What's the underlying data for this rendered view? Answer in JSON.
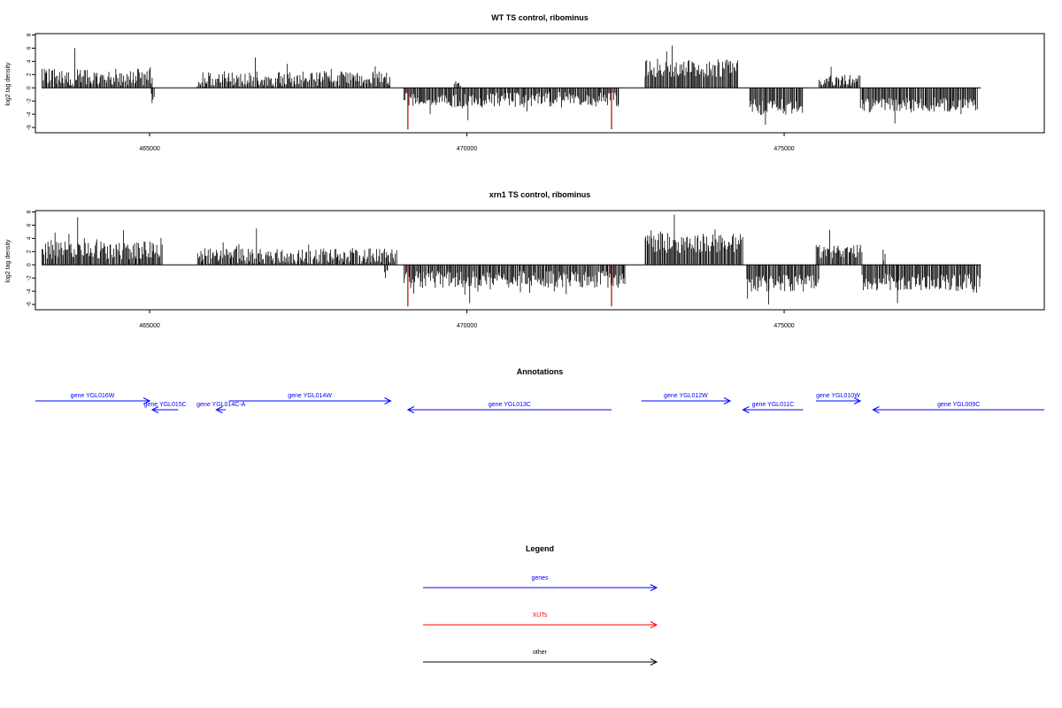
{
  "chart_data": [
    {
      "type": "bar",
      "title": "WT TS control, ribominus",
      "ylabel": "log2 tag density",
      "xlim": [
        463200,
        479100
      ],
      "ylim": [
        -6.8,
        8.2
      ],
      "yticks": [
        8,
        6,
        4,
        2,
        0,
        -2,
        -4,
        -6
      ],
      "xticks": [
        465000,
        470000,
        475000
      ],
      "xtick_labels": [
        "465000",
        "470000",
        "475000"
      ],
      "zero_baseline": 0,
      "plus_strand_regions": [
        {
          "from": 463300,
          "to": 465050,
          "mean": 1.6,
          "spread": 1.3,
          "max": 6.0
        },
        {
          "from": 465750,
          "to": 468800,
          "mean": 1.3,
          "spread": 1.2,
          "max": 4.6
        },
        {
          "from": 469800,
          "to": 469900,
          "mean": 0.6,
          "spread": 0.3,
          "max": 1.0
        },
        {
          "from": 472800,
          "to": 474280,
          "mean": 3.0,
          "spread": 1.4,
          "max": 6.4
        },
        {
          "from": 475550,
          "to": 476200,
          "mean": 1.1,
          "spread": 0.8,
          "max": 3.2
        }
      ],
      "minus_strand_regions": [
        {
          "from": 465020,
          "to": 465080,
          "mean": -1.5,
          "spread": 0.8,
          "max": -2.3
        },
        {
          "from": 469000,
          "to": 472400,
          "mean": -1.8,
          "spread": 1.2,
          "max": -4.9
        },
        {
          "from": 474450,
          "to": 475300,
          "mean": -2.9,
          "spread": 1.2,
          "max": -5.6
        },
        {
          "from": 476200,
          "to": 478050,
          "mean": -2.6,
          "spread": 1.2,
          "max": -5.4
        }
      ],
      "highlight_bars": [
        {
          "x": 469070,
          "value": -6.3,
          "color": "#c00000"
        },
        {
          "x": 472280,
          "value": -6.3,
          "color": "#c00000"
        }
      ]
    },
    {
      "type": "bar",
      "title": "xrn1 TS control, ribominus",
      "ylabel": "log2 tag density",
      "xlim": [
        463200,
        479100
      ],
      "ylim": [
        -6.8,
        8.2
      ],
      "yticks": [
        8,
        6,
        4,
        2,
        0,
        -2,
        -4,
        -6
      ],
      "xticks": [
        465000,
        470000,
        475000
      ],
      "xtick_labels": [
        "465000",
        "470000",
        "475000"
      ],
      "zero_baseline": 0,
      "plus_strand_regions": [
        {
          "from": 463300,
          "to": 465200,
          "mean": 2.2,
          "spread": 1.4,
          "max": 7.2
        },
        {
          "from": 465750,
          "to": 468900,
          "mean": 1.3,
          "spread": 1.2,
          "max": 5.5
        },
        {
          "from": 472800,
          "to": 474350,
          "mean": 3.3,
          "spread": 1.5,
          "max": 7.6
        },
        {
          "from": 475500,
          "to": 476230,
          "mean": 2.1,
          "spread": 1.1,
          "max": 5.3
        },
        {
          "from": 476550,
          "to": 476600,
          "mean": 1.0,
          "spread": 0.4,
          "max": 2.3
        }
      ],
      "minus_strand_regions": [
        {
          "from": 468700,
          "to": 468760,
          "mean": -1.3,
          "spread": 0.5,
          "max": -2.0
        },
        {
          "from": 469000,
          "to": 472500,
          "mean": -2.2,
          "spread": 1.3,
          "max": -5.8
        },
        {
          "from": 474400,
          "to": 475550,
          "mean": -2.8,
          "spread": 1.3,
          "max": -6.0
        },
        {
          "from": 476220,
          "to": 478100,
          "mean": -2.6,
          "spread": 1.3,
          "max": -5.8
        }
      ],
      "highlight_bars": [
        {
          "x": 469070,
          "value": -6.3,
          "color": "#c00000"
        },
        {
          "x": 472280,
          "value": -6.3,
          "color": "#c00000"
        }
      ]
    }
  ],
  "annotations": {
    "title": "Annotations",
    "color": "#0000ff",
    "items": [
      {
        "label": "gene YGL016W",
        "from": 463200,
        "to": 465000,
        "strand": "+",
        "row": 0
      },
      {
        "label": "gene YGL015C",
        "from": 465040,
        "to": 465450,
        "strand": "-",
        "row": 1
      },
      {
        "label": "gene YGL014C-A",
        "from": 466050,
        "to": 466200,
        "strand": "-",
        "row": 1
      },
      {
        "label": "gene YGL014W",
        "from": 466250,
        "to": 468800,
        "strand": "+",
        "row": 0
      },
      {
        "label": "gene YGL013C",
        "from": 469070,
        "to": 472280,
        "strand": "-",
        "row": 1
      },
      {
        "label": "gene YGL012W",
        "from": 472750,
        "to": 474150,
        "strand": "+",
        "row": 0
      },
      {
        "label": "gene YGL011C",
        "from": 474350,
        "to": 475300,
        "strand": "-",
        "row": 1
      },
      {
        "label": "gene YGL010W",
        "from": 475500,
        "to": 476200,
        "strand": "+",
        "row": 0
      },
      {
        "label": "gene YGL009C",
        "from": 476400,
        "to": 479100,
        "strand": "-",
        "row": 1
      }
    ]
  },
  "legend": {
    "title": "Legend",
    "entries": [
      {
        "label": "genes",
        "color": "#0000ff"
      },
      {
        "label": "XUTs",
        "color": "#ff0000"
      },
      {
        "label": "other",
        "color": "#000000"
      }
    ]
  }
}
